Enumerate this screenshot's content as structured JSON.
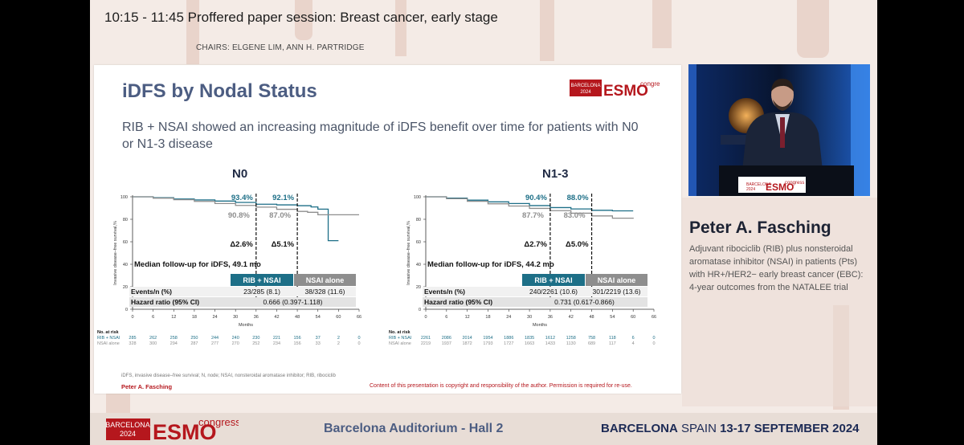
{
  "session": {
    "title": "10:15 - 11:45  Proffered paper session: Breast cancer, early stage",
    "chairs": "CHAIRS: ELGENE LIM, ANN H. PARTRIDGE"
  },
  "slide": {
    "title": "iDFS by Nodal Status",
    "subtitle": "RIB + NSAI showed an increasing magnitude of iDFS benefit over time for patients with N0 or N1-3 disease",
    "logo": {
      "city": "BARCELONA",
      "year": "2024",
      "brand": "ESMO",
      "word": "congress"
    },
    "footnote": "iDFS, invasive disease–free survival; N, node; NSAI, nonsteroidal aromatase inhibitor; RIB, ribociclib",
    "author": "Peter A. Fasching",
    "copyright": "Content of this presentation is copyright and responsibility of the author. Permission is required for re-use."
  },
  "colors": {
    "rib": "#1d6f87",
    "nsai": "#8e8e8e",
    "title_blue": "#4c5d82",
    "esmo_red": "#b5171d"
  },
  "chart_data": [
    {
      "type": "line",
      "title": "N0",
      "ylabel": "Invasive disease–free survival,%",
      "xlabel": "Months",
      "xlim": [
        0,
        66
      ],
      "ylim": [
        0,
        100
      ],
      "xticks": [
        0,
        6,
        12,
        18,
        24,
        30,
        36,
        42,
        48,
        54,
        60,
        66
      ],
      "yticks": [
        0,
        20,
        40,
        60,
        80,
        100
      ],
      "series": [
        {
          "name": "RIB + NSAI",
          "x": [
            0,
            6,
            12,
            18,
            24,
            30,
            36,
            42,
            48,
            52,
            54,
            57,
            60
          ],
          "y": [
            100,
            99.2,
            98,
            97.2,
            96.2,
            95.0,
            93.4,
            92.8,
            92.1,
            91.0,
            89,
            61,
            61
          ]
        },
        {
          "name": "NSAI alone",
          "x": [
            0,
            6,
            12,
            18,
            24,
            30,
            36,
            42,
            48,
            51,
            54,
            60,
            66
          ],
          "y": [
            100,
            98.8,
            97.4,
            95.9,
            94.0,
            92.3,
            90.8,
            88.9,
            87.0,
            86.2,
            84,
            84,
            84
          ]
        }
      ],
      "annotations": [
        {
          "x": 36,
          "rib_label": "93.4%",
          "nsai_label": "90.8%",
          "delta": "Δ2.6%"
        },
        {
          "x": 48,
          "rib_label": "92.1%",
          "nsai_label": "87.0%",
          "delta": "Δ5.1%"
        }
      ],
      "median_followup": "Median follow-up for iDFS, 49.1 mo",
      "table": {
        "headers": [
          "RIB + NSAI",
          "NSAI alone"
        ],
        "rows": [
          {
            "label": "Events/n (%)",
            "values": [
              "23/285 (8.1)",
              "38/328 (11.6)"
            ]
          },
          {
            "label": "Hazard ratio (95% CI)",
            "values": [
              "0.666 (0.397-1.118)"
            ]
          }
        ]
      },
      "risk_table": {
        "title": "No. at risk",
        "rows": [
          {
            "label": "RIB + NSAI",
            "values": [
              "285",
              "262",
              "258",
              "250",
              "244",
              "240",
              "230",
              "221",
              "156",
              "37",
              "2",
              "0"
            ]
          },
          {
            "label": "NSAI alone",
            "values": [
              "328",
              "300",
              "294",
              "287",
              "277",
              "270",
              "252",
              "234",
              "156",
              "33",
              "2",
              "0"
            ]
          }
        ]
      }
    },
    {
      "type": "line",
      "title": "N1-3",
      "ylabel": "Invasive disease–free survival,%",
      "xlabel": "Months",
      "xlim": [
        0,
        66
      ],
      "ylim": [
        0,
        100
      ],
      "xticks": [
        0,
        6,
        12,
        18,
        24,
        30,
        36,
        42,
        48,
        54,
        60,
        66
      ],
      "yticks": [
        0,
        20,
        40,
        60,
        80,
        100
      ],
      "series": [
        {
          "name": "RIB + NSAI",
          "x": [
            0,
            6,
            12,
            18,
            24,
            30,
            36,
            42,
            48,
            54,
            60
          ],
          "y": [
            100,
            98.8,
            97.0,
            95.5,
            94.0,
            92.2,
            90.4,
            89.2,
            88.0,
            87.5,
            87.5
          ]
        },
        {
          "name": "NSAI alone",
          "x": [
            0,
            6,
            12,
            18,
            24,
            30,
            36,
            42,
            48,
            54,
            60
          ],
          "y": [
            100,
            98.3,
            96.0,
            93.8,
            91.8,
            89.7,
            87.7,
            85.4,
            83.0,
            81.0,
            80.5
          ]
        }
      ],
      "annotations": [
        {
          "x": 36,
          "rib_label": "90.4%",
          "nsai_label": "87.7%",
          "delta": "Δ2.7%"
        },
        {
          "x": 48,
          "rib_label": "88.0%",
          "nsai_label": "83.0%",
          "delta": "Δ5.0%"
        }
      ],
      "median_followup": "Median follow-up for iDFS, 44.2 mo",
      "table": {
        "headers": [
          "RIB + NSAI",
          "NSAI alone"
        ],
        "rows": [
          {
            "label": "Events/n (%)",
            "values": [
              "240/2261 (10.6)",
              "301/2219 (13.6)"
            ]
          },
          {
            "label": "Hazard ratio (95% CI)",
            "values": [
              "0.731 (0.617-0.866)"
            ]
          }
        ]
      },
      "risk_table": {
        "title": "No. at risk",
        "rows": [
          {
            "label": "RIB + NSAI",
            "values": [
              "2261",
              "2086",
              "2014",
              "1954",
              "1886",
              "1835",
              "1612",
              "1258",
              "758",
              "118",
              "6",
              "0"
            ]
          },
          {
            "label": "NSAI alone",
            "values": [
              "2219",
              "1937",
              "1872",
              "1793",
              "1727",
              "1663",
              "1433",
              "1130",
              "689",
              "117",
              "4",
              "0"
            ]
          }
        ]
      }
    }
  ],
  "speaker": {
    "name": "Peter A. Fasching",
    "talk": "Adjuvant ribociclib (RIB) plus nonsteroidal aromatase inhibitor (NSAI) in patients (Pts) with HR+/HER2− early breast cancer (EBC): 4-year outcomes from the NATALEE trial",
    "podium_logo": {
      "city": "BARCELONA",
      "year": "2024",
      "brand": "ESMO",
      "word": "congress"
    }
  },
  "footer": {
    "logo": {
      "city": "BARCELONA",
      "year": "2024",
      "brand": "ESMO",
      "word": "congress"
    },
    "venue": "Barcelona Auditorium - Hall 2",
    "city_word": "BARCELONA",
    "country_word": "SPAIN",
    "dates": "13-17 SEPTEMBER 2024"
  }
}
